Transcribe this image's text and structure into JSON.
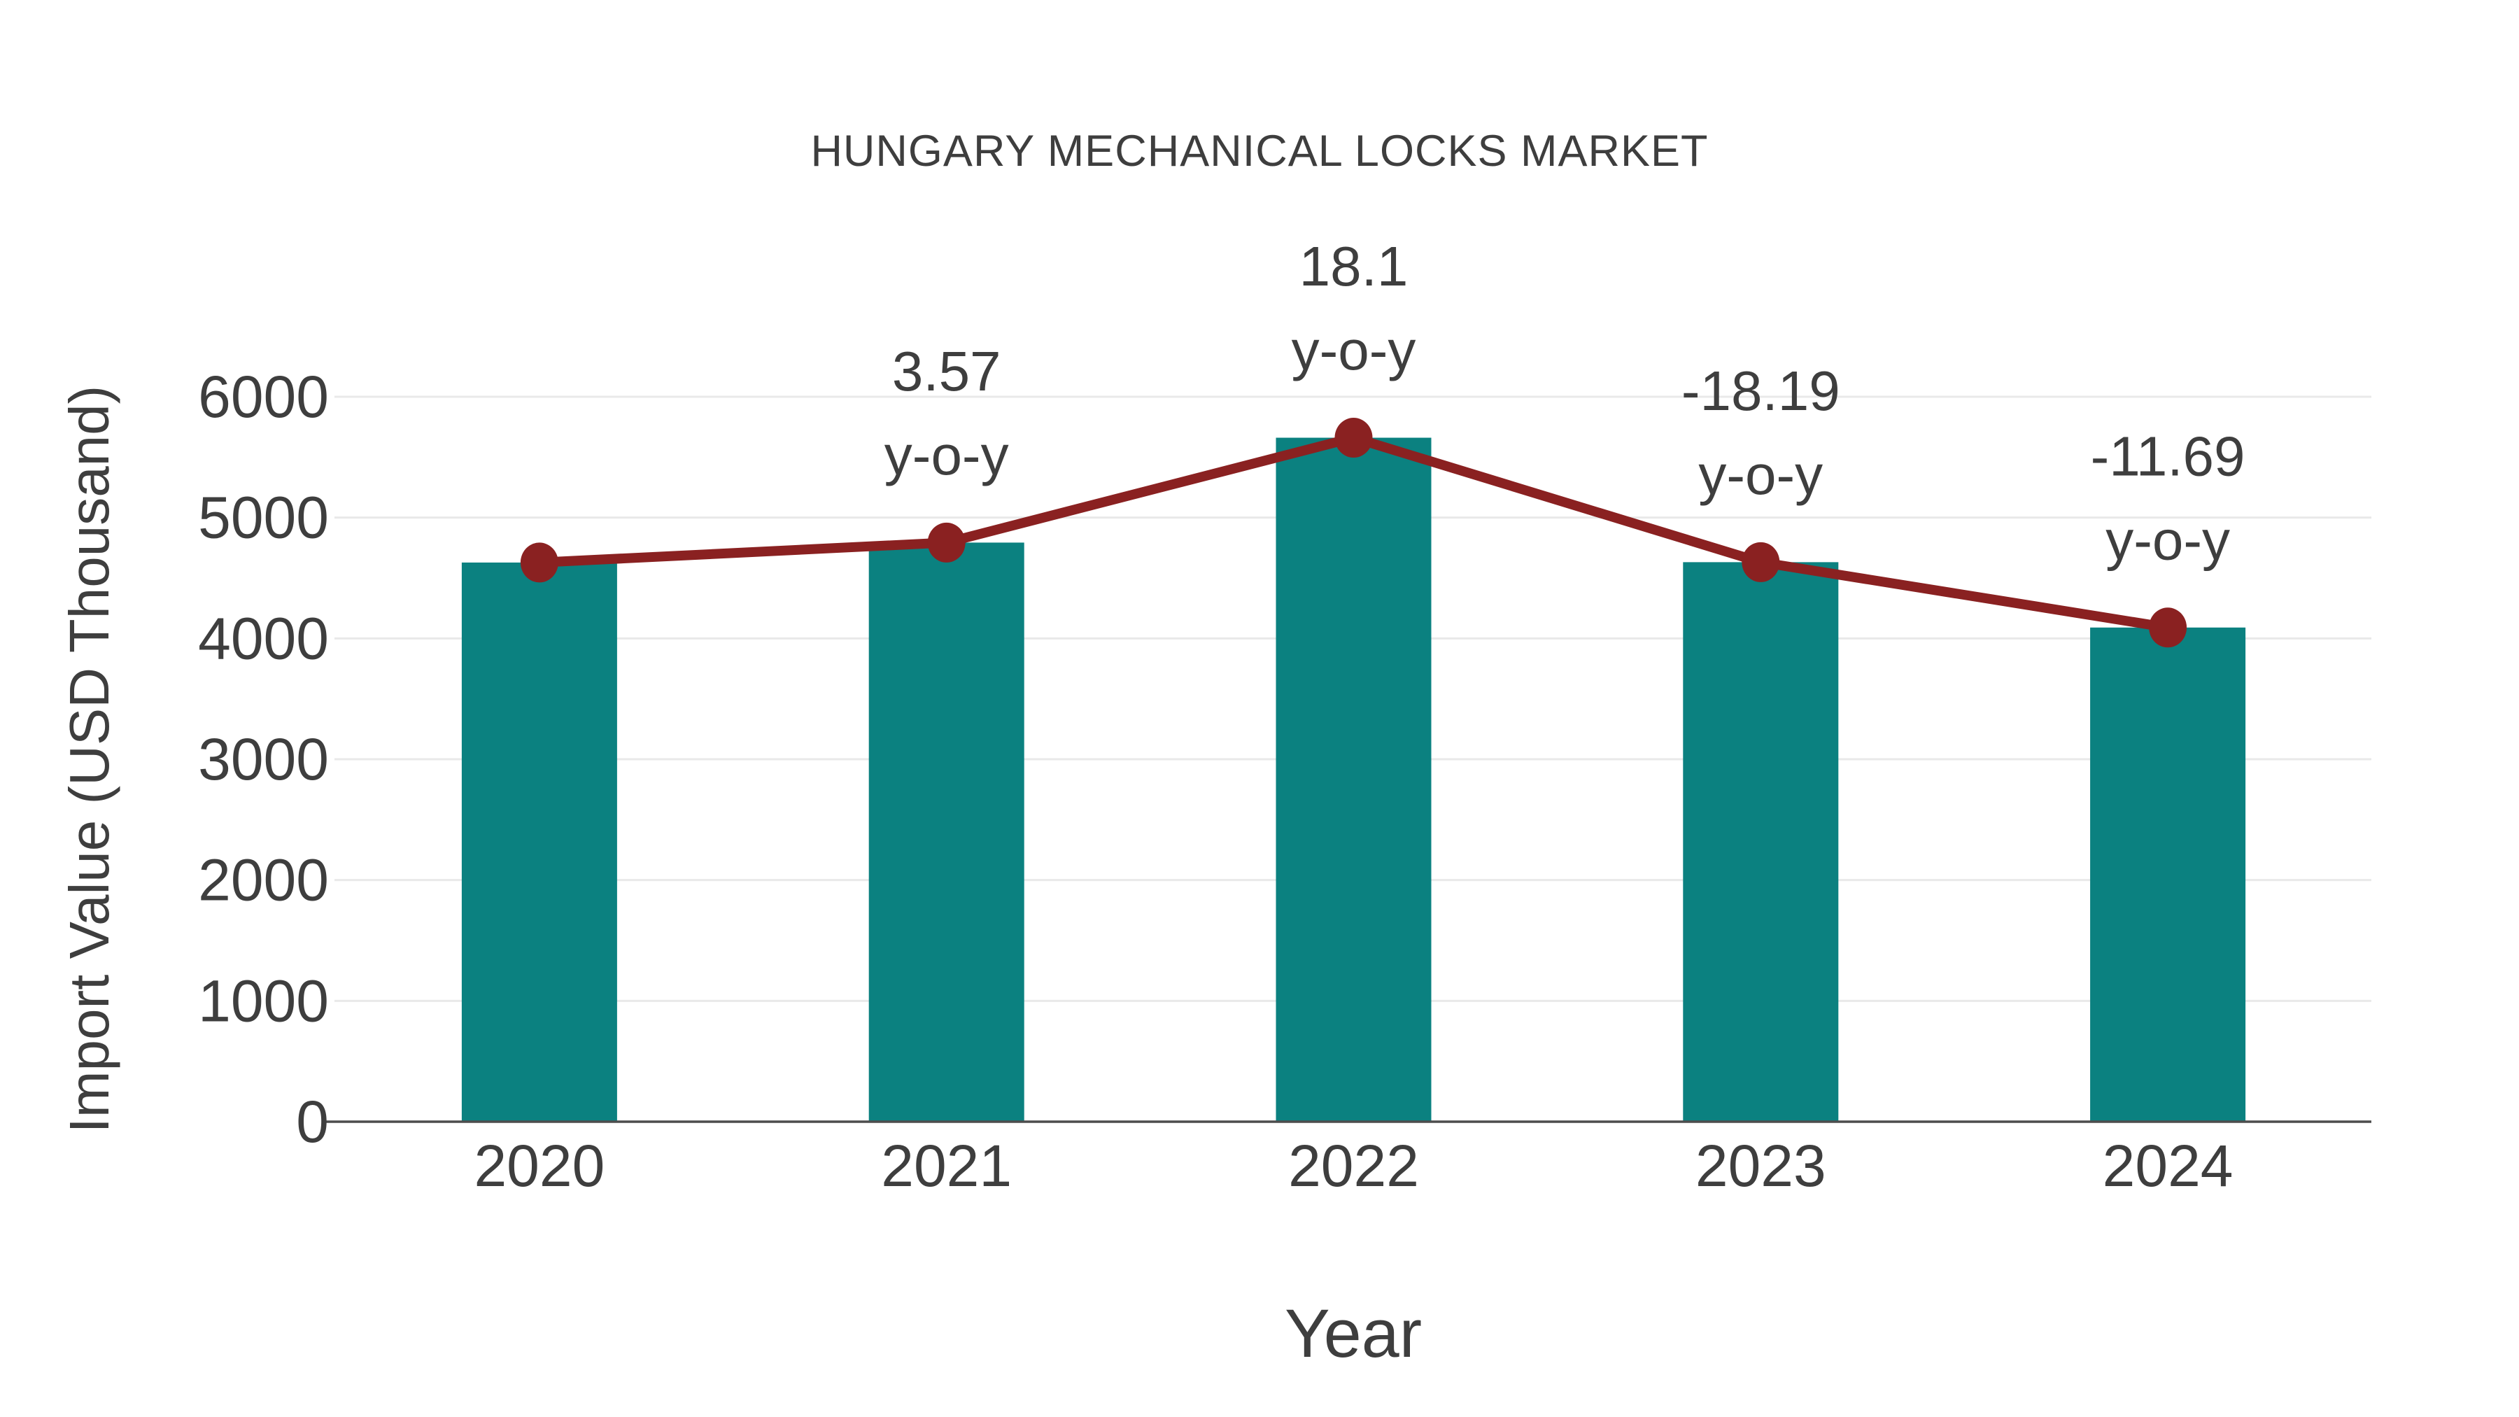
{
  "chart_data": {
    "type": "bar",
    "title": "HUNGARY MECHANICAL LOCKS MARKET",
    "xlabel": "Year",
    "ylabel": "Import Value (USD Thousand)",
    "categories": [
      "2020",
      "2021",
      "2022",
      "2023",
      "2024"
    ],
    "series": [
      {
        "name": "Import Value bars",
        "type": "bar",
        "values": [
          4628,
          4793,
          5661,
          4631,
          4090
        ],
        "color": "#0b8180"
      },
      {
        "name": "Import Value trend line",
        "type": "line",
        "values": [
          4628,
          4793,
          5661,
          4631,
          4090
        ],
        "color": "#8a2121",
        "marker": "circle"
      }
    ],
    "annotations": [
      {
        "category": "2021",
        "line1": "3.57",
        "line2": "y-o-y"
      },
      {
        "category": "2022",
        "line1": "18.1",
        "line2": "y-o-y"
      },
      {
        "category": "2023",
        "line1": "-18.19",
        "line2": "y-o-y"
      },
      {
        "category": "2024",
        "line1": "-11.69",
        "line2": "y-o-y"
      }
    ],
    "yoy_percent": [
      null,
      3.57,
      18.1,
      -18.19,
      -11.69
    ],
    "yticks": [
      0,
      1000,
      2000,
      3000,
      4000,
      5000,
      6000
    ],
    "ylim": [
      0,
      6000
    ],
    "grid": true,
    "legend": false,
    "colors": {
      "bar": "#0b8180",
      "line": "#8a2121",
      "marker": "#8a2121",
      "gridline": "#e9e9e9",
      "axis": "#4d4d4d",
      "text": "#3e3e3e",
      "background": "#ffffff"
    }
  }
}
